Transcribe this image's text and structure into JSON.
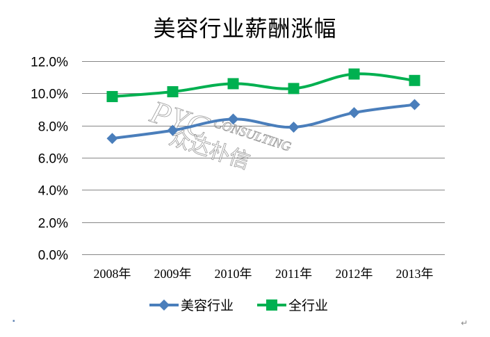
{
  "chart_data": {
    "type": "line",
    "title": "美容行业薪酬涨幅",
    "categories": [
      "2008年",
      "2009年",
      "2010年",
      "2011年",
      "2012年",
      "2013年"
    ],
    "series": [
      {
        "name": "美容行业",
        "color": "#4a7ebb",
        "marker": "diamond",
        "values": [
          7.2,
          7.7,
          8.4,
          7.9,
          8.8,
          9.3
        ]
      },
      {
        "name": "全行业",
        "color": "#00b050",
        "marker": "square",
        "values": [
          9.8,
          10.1,
          10.6,
          10.3,
          11.2,
          10.8
        ]
      }
    ],
    "xlabel": "",
    "ylabel": "",
    "yticks": [
      "0.0%",
      "2.0%",
      "4.0%",
      "6.0%",
      "8.0%",
      "10.0%",
      "12.0%"
    ],
    "ylim": [
      0,
      12
    ],
    "y_unit": "%",
    "grid": true,
    "legend_position": "bottom",
    "smooth_lines": true
  },
  "watermark": {
    "logo": "PYC",
    "text_en": "CONSULTING",
    "text_cn": "众达朴信"
  },
  "corner_marks": {
    "left": "▪",
    "right": "↵"
  }
}
